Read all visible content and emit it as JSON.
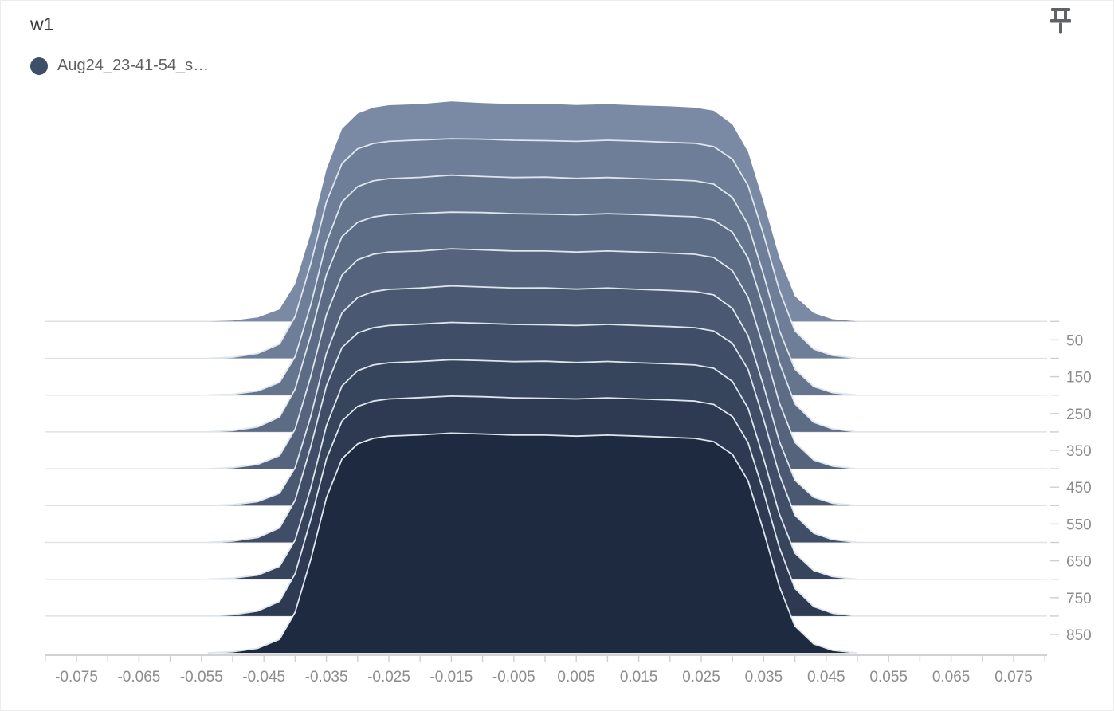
{
  "header": {
    "title": "w1"
  },
  "toolbar": {
    "pin_icon": "pushpin-icon",
    "pin_color": "#5f6368"
  },
  "legend": {
    "items": [
      {
        "label": "Aug24_23-41-54_s…",
        "color": "#3e4f68"
      }
    ]
  },
  "chart_data": {
    "type": "area",
    "subtype": "histogram-offset-ridgeline",
    "title": "w1",
    "run": "Aug24_23-41-54_s…",
    "xlabel": "",
    "ylabel": "",
    "legend_position": "top-left",
    "grid": true,
    "x": [
      -0.054,
      -0.05,
      -0.046,
      -0.0425,
      -0.04,
      -0.0375,
      -0.035,
      -0.0325,
      -0.03,
      -0.0275,
      -0.025,
      -0.02,
      -0.015,
      -0.01,
      -0.005,
      0,
      0.005,
      0.01,
      0.015,
      0.02,
      0.024,
      0.027,
      0.03,
      0.0325,
      0.035,
      0.0375,
      0.04,
      0.043,
      0.046,
      0.05
    ],
    "series": [
      {
        "step": 0,
        "color": "#7b8aa4",
        "heights": [
          0,
          0.004,
          0.018,
          0.055,
          0.17,
          0.4,
          0.69,
          0.875,
          0.945,
          0.972,
          0.983,
          0.988,
          1.0,
          0.993,
          0.988,
          0.99,
          0.984,
          0.988,
          0.982,
          0.978,
          0.972,
          0.958,
          0.895,
          0.77,
          0.54,
          0.29,
          0.115,
          0.038,
          0.01,
          0
        ]
      },
      {
        "step": 100,
        "color": "#6f7e98",
        "heights": [
          0,
          0.005,
          0.022,
          0.065,
          0.19,
          0.43,
          0.71,
          0.885,
          0.952,
          0.976,
          0.986,
          0.992,
          0.998,
          0.996,
          0.991,
          0.989,
          0.986,
          0.991,
          0.987,
          0.981,
          0.977,
          0.962,
          0.905,
          0.785,
          0.56,
          0.31,
          0.125,
          0.042,
          0.013,
          0
        ]
      },
      {
        "step": 200,
        "color": "#66758e",
        "heights": [
          0,
          0.004,
          0.019,
          0.058,
          0.175,
          0.41,
          0.695,
          0.878,
          0.948,
          0.974,
          0.984,
          0.99,
          1.0,
          0.994,
          0.989,
          0.991,
          0.985,
          0.989,
          0.984,
          0.979,
          0.974,
          0.959,
          0.898,
          0.775,
          0.545,
          0.295,
          0.118,
          0.039,
          0.011,
          0
        ]
      },
      {
        "step": 300,
        "color": "#5d6c85",
        "heights": [
          0,
          0.006,
          0.023,
          0.068,
          0.195,
          0.44,
          0.715,
          0.888,
          0.953,
          0.977,
          0.987,
          0.993,
          0.999,
          0.997,
          0.992,
          0.99,
          0.987,
          0.992,
          0.988,
          0.982,
          0.978,
          0.963,
          0.908,
          0.79,
          0.565,
          0.315,
          0.128,
          0.044,
          0.014,
          0
        ]
      },
      {
        "step": 400,
        "color": "#55637d",
        "heights": [
          0,
          0.005,
          0.02,
          0.06,
          0.18,
          0.42,
          0.7,
          0.88,
          0.95,
          0.975,
          0.985,
          0.99,
          1.0,
          0.995,
          0.99,
          0.99,
          0.985,
          0.99,
          0.985,
          0.98,
          0.975,
          0.96,
          0.9,
          0.78,
          0.55,
          0.3,
          0.12,
          0.04,
          0.012,
          0
        ]
      },
      {
        "step": 500,
        "color": "#4a5872",
        "heights": [
          0,
          0.004,
          0.018,
          0.056,
          0.172,
          0.405,
          0.692,
          0.876,
          0.946,
          0.973,
          0.983,
          0.989,
          0.999,
          0.994,
          0.989,
          0.99,
          0.984,
          0.989,
          0.983,
          0.978,
          0.973,
          0.958,
          0.896,
          0.772,
          0.542,
          0.292,
          0.116,
          0.038,
          0.011,
          0
        ]
      },
      {
        "step": 600,
        "color": "#3f4d66",
        "heights": [
          0,
          0.006,
          0.022,
          0.066,
          0.192,
          0.435,
          0.712,
          0.886,
          0.952,
          0.976,
          0.986,
          0.992,
          1.0,
          0.996,
          0.991,
          0.989,
          0.986,
          0.991,
          0.986,
          0.981,
          0.976,
          0.961,
          0.905,
          0.786,
          0.558,
          0.308,
          0.124,
          0.042,
          0.013,
          0
        ]
      },
      {
        "step": 700,
        "color": "#36445c",
        "heights": [
          0,
          0.005,
          0.019,
          0.059,
          0.178,
          0.415,
          0.698,
          0.879,
          0.948,
          0.974,
          0.984,
          0.99,
          0.998,
          0.994,
          0.989,
          0.991,
          0.985,
          0.99,
          0.984,
          0.979,
          0.974,
          0.959,
          0.899,
          0.777,
          0.547,
          0.297,
          0.119,
          0.04,
          0.012,
          0
        ]
      },
      {
        "step": 800,
        "color": "#2d3a51",
        "heights": [
          0,
          0.006,
          0.023,
          0.067,
          0.193,
          0.438,
          0.714,
          0.887,
          0.953,
          0.977,
          0.987,
          0.993,
          1.0,
          0.997,
          0.992,
          0.99,
          0.987,
          0.992,
          0.987,
          0.982,
          0.977,
          0.962,
          0.907,
          0.788,
          0.562,
          0.312,
          0.126,
          0.043,
          0.013,
          0
        ]
      },
      {
        "step": 900,
        "color": "#1e2a40",
        "heights": [
          0,
          0.005,
          0.021,
          0.062,
          0.185,
          0.425,
          0.705,
          0.882,
          0.95,
          0.975,
          0.985,
          0.991,
          0.999,
          0.995,
          0.99,
          0.99,
          0.985,
          0.99,
          0.985,
          0.98,
          0.975,
          0.96,
          0.902,
          0.782,
          0.552,
          0.302,
          0.122,
          0.041,
          0.012,
          0
        ]
      }
    ],
    "x_axis": {
      "min": -0.08,
      "max": 0.08,
      "minor_tick_step": 0.005,
      "label_values": [
        -0.075,
        -0.065,
        -0.055,
        -0.045,
        -0.035,
        -0.025,
        -0.015,
        -0.005,
        0.005,
        0.015,
        0.025,
        0.035,
        0.045,
        0.055,
        0.065,
        0.075
      ],
      "labels": [
        "-0.075",
        "-0.065",
        "-0.055",
        "-0.045",
        "-0.035",
        "-0.025",
        "-0.015",
        "-0.005",
        "0.005",
        "0.015",
        "0.025",
        "0.035",
        "0.045",
        "0.055",
        "0.065",
        "0.075"
      ]
    },
    "y_axis": {
      "side": "right",
      "min": 0,
      "max": 900,
      "minor_tick_step": 50,
      "label_values": [
        50,
        150,
        250,
        350,
        450,
        550,
        650,
        750,
        850
      ],
      "labels": [
        "50",
        "150",
        "250",
        "350",
        "450",
        "550",
        "650",
        "750",
        "850"
      ],
      "gridline_steps": [
        0,
        100,
        200,
        300,
        400,
        500,
        600,
        700,
        800
      ]
    },
    "colors": {
      "ridge_stroke": "#dde5ee",
      "gridline": "#e2e2e2",
      "axis_line": "#c4c4c4",
      "tick": "#cfcfcf",
      "tick_label": "#8c8c8c"
    }
  }
}
